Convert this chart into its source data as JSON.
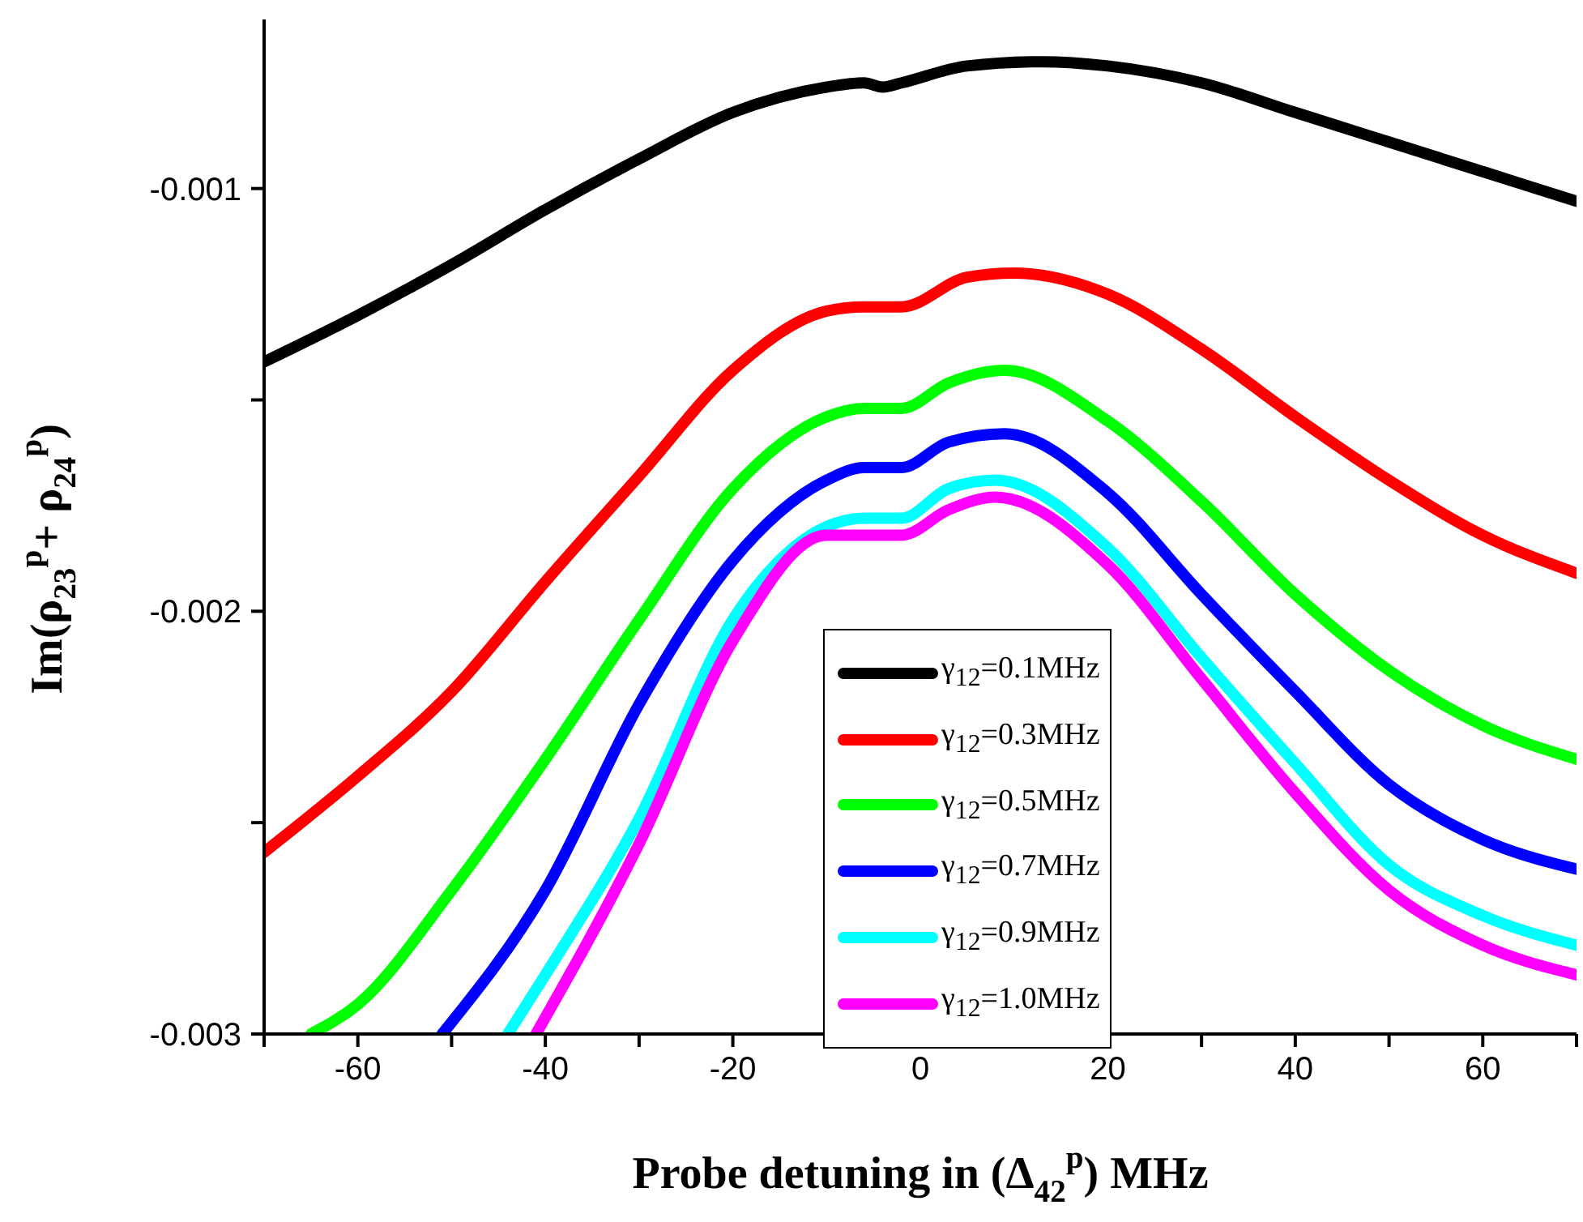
{
  "chart_data": {
    "type": "line",
    "xlabel": "Probe detuning in (Δ$_{42}$$^{p}$) MHz",
    "ylabel": "Im(ρ$_{23}$$^{p}$+ ρ$_{24}$$^{p}$)",
    "xlim": [
      -70,
      70
    ],
    "xticks": [
      {
        "value": -70,
        "label": null
      },
      -60,
      {
        "value": -50,
        "label": null
      },
      -40,
      {
        "value": -30,
        "label": null
      },
      -20,
      {
        "value": -10,
        "label": null
      },
      0,
      {
        "value": 10,
        "label": null
      },
      20,
      {
        "value": 30,
        "label": null
      },
      40,
      {
        "value": 50,
        "label": null
      },
      60,
      {
        "value": 70,
        "label": null
      }
    ],
    "ylim": [
      -0.003,
      -0.0006
    ],
    "yticks": [
      -0.003,
      {
        "value": -0.0025,
        "label": null
      },
      -0.002,
      {
        "value": -0.0015,
        "label": null
      },
      -0.001
    ],
    "legend": "bottom",
    "line_style": "solid",
    "marker": "none",
    "series": [
      {
        "name": "γ$_{12}$=0.1MHz",
        "color": "#000000",
        "x": [
          -70,
          -60,
          -50,
          -40,
          -30,
          -20,
          -10,
          -6,
          -4,
          -2,
          5,
          13,
          20,
          30,
          40,
          50,
          60,
          70
        ],
        "values": [
          -0.00141,
          -0.0013,
          -0.00118,
          -0.00105,
          -0.00093,
          -0.00082,
          -0.00076,
          -0.00075,
          -0.00076,
          -0.00075,
          -0.00071,
          -0.0007,
          -0.00071,
          -0.00075,
          -0.00082,
          -0.00089,
          -0.00096,
          -0.00103
        ]
      },
      {
        "name": "γ$_{12}$=0.3MHz",
        "color": "#ff0000",
        "x": [
          -70,
          -60,
          -50,
          -40,
          -30,
          -20,
          -10,
          -6,
          -4,
          -2,
          5,
          10,
          20,
          30,
          40,
          50,
          60,
          70
        ],
        "values": [
          -0.00257,
          -0.00239,
          -0.00219,
          -0.00193,
          -0.00168,
          -0.00143,
          -0.00129,
          -0.00128,
          -0.00128,
          -0.00128,
          -0.00121,
          -0.0012,
          -0.00125,
          -0.00138,
          -0.00154,
          -0.00169,
          -0.00182,
          -0.00191
        ]
      },
      {
        "name": "γ$_{12}$=0.5MHz",
        "color": "#00ff00",
        "x": [
          -65,
          -60,
          -50,
          -40,
          -30,
          -20,
          -10,
          -6,
          -4,
          -2,
          3,
          9,
          20,
          30,
          40,
          50,
          60,
          70
        ],
        "values": [
          -0.003,
          -0.00293,
          -0.00266,
          -0.00235,
          -0.00202,
          -0.00171,
          -0.00154,
          -0.00152,
          -0.00152,
          -0.00152,
          -0.00146,
          -0.00143,
          -0.00155,
          -0.00174,
          -0.00196,
          -0.00214,
          -0.00227,
          -0.00235
        ]
      },
      {
        "name": "γ$_{12}$=0.7MHz",
        "color": "#0000ff",
        "x": [
          -51,
          -40,
          -30,
          -20,
          -10,
          -6,
          -4,
          -2,
          3,
          9,
          20,
          30,
          40,
          50,
          60,
          70
        ],
        "values": [
          -0.003,
          -0.00266,
          -0.00222,
          -0.00188,
          -0.00169,
          -0.00166,
          -0.00166,
          -0.00166,
          -0.0016,
          -0.00158,
          -0.00172,
          -0.00196,
          -0.00219,
          -0.00241,
          -0.00254,
          -0.00261
        ]
      },
      {
        "name": "γ$_{12}$=0.9MHz",
        "color": "#00ffff",
        "x": [
          -44,
          -40,
          -30,
          -20,
          -10,
          -6,
          -4,
          -2,
          3,
          8,
          20,
          30,
          40,
          50,
          60,
          70
        ],
        "values": [
          -0.003,
          -0.00286,
          -0.00249,
          -0.00202,
          -0.0018,
          -0.00178,
          -0.00178,
          -0.00178,
          -0.00171,
          -0.00169,
          -0.00185,
          -0.00211,
          -0.00236,
          -0.0026,
          -0.00272,
          -0.00279
        ]
      },
      {
        "name": "γ$_{12}$=1.0MHz",
        "color": "#ff00ff",
        "x": [
          -41,
          -30,
          -20,
          -10,
          -6,
          -4,
          -2,
          3,
          8,
          20,
          30,
          40,
          50,
          60,
          70
        ],
        "values": [
          -0.003,
          -0.00255,
          -0.00207,
          -0.00182,
          -0.00182,
          -0.00182,
          -0.00182,
          -0.00176,
          -0.00173,
          -0.00189,
          -0.00216,
          -0.00243,
          -0.00266,
          -0.00279,
          -0.00286
        ]
      }
    ]
  }
}
